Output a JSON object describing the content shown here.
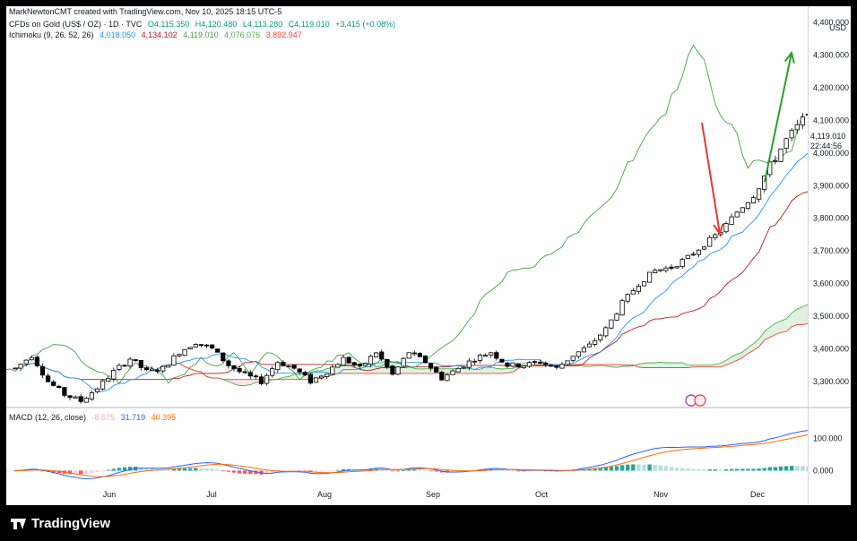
{
  "header": {
    "credit": "MarkNewtonCMT created with TradingView.com, Nov 10, 2025 18:15 UTC-5",
    "symbol": "CFDs on Gold (US$ / OZ) · 1D · TVC",
    "open": "O4,115.350",
    "high": "H4,120.480",
    "low": "L4,113.280",
    "close": "C4,119.010",
    "change": "+3.415 (+0.08%)",
    "ichimoku_label": "Ichimoku (9, 26, 52, 26)",
    "ichimoku_values": [
      "4,018.050",
      "4,134.102",
      "4,119.010",
      "4,076.076",
      "3,892.947"
    ],
    "currency": "USD"
  },
  "macd_header": {
    "label": "MACD (12, 26, close)",
    "values": [
      "-8.675",
      "31.719",
      "40.395"
    ]
  },
  "price_tag": {
    "price": "4,119.010",
    "countdown": "22:44:56"
  },
  "footer": {
    "brand": "TradingView"
  },
  "colors": {
    "bull": "#089981",
    "bear": "#000000",
    "tenkan": "#2196f3",
    "kijun": "#b71c1c",
    "chikou": "#43a047",
    "span_a": "#4caf50",
    "span_b": "#f44336",
    "cloud_bull": "#c8e6c9",
    "macd": "#2962ff",
    "signal": "#ff6d00",
    "annot_up": "#2e9e2e",
    "annot_down": "#e53935"
  },
  "chart_data": [
    {
      "type": "candlestick",
      "title": "CFDs on Gold (US$ / OZ)",
      "price_axis": {
        "ticks": [
          3300,
          3400,
          3500,
          3600,
          3700,
          3800,
          3900,
          4000,
          4100,
          4200,
          4300,
          4400
        ],
        "tick_labels": [
          "3,300.000",
          "3,400.000",
          "3,500.000",
          "3,600.000",
          "3,700.000",
          "3,800.000",
          "3,900.000",
          "4,000.000",
          "4,100.000",
          "4,200.000",
          "4,300.000",
          "4,400.000"
        ],
        "range": [
          3220,
          4450
        ]
      },
      "time_axis": {
        "labels": [
          "Jun",
          "Jul",
          "Aug",
          "Sep",
          "Oct",
          "Nov",
          "Dec"
        ],
        "first_date": "2025-05-06",
        "last_date": "2025-12-31"
      },
      "last_close": 4119.01,
      "grid": false
    },
    {
      "type": "histogram+line",
      "title": "MACD (12, 26, close)",
      "ticks": [
        0,
        100
      ],
      "tick_labels": [
        "0.000",
        "100.000"
      ],
      "range": [
        -60,
        185
      ]
    }
  ],
  "annotations": [
    {
      "type": "arrow",
      "direction": "up",
      "color": "green"
    },
    {
      "type": "arrow",
      "direction": "down",
      "color": "red"
    }
  ]
}
